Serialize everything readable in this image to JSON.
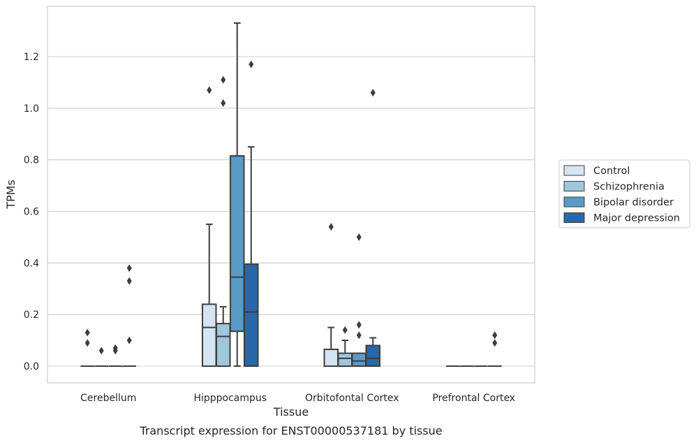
{
  "chart_data": {
    "type": "boxplot",
    "caption": "Transcript expression for ENST00000537181 by tissue",
    "xlabel": "Tissue",
    "ylabel": "TPMs",
    "ylim": [
      -0.065,
      1.395
    ],
    "yticks": [
      "0.0",
      "0.2",
      "0.4",
      "0.6",
      "0.8",
      "1.0",
      "1.2"
    ],
    "ytick_values": [
      0.0,
      0.2,
      0.4,
      0.6,
      0.8,
      1.0,
      1.2
    ],
    "grid": "horizontal",
    "legend_position": "right",
    "categories": [
      "Cerebellum",
      "Hipppocampus",
      "Orbitofontal Cortex",
      "Prefrontal Cortex"
    ],
    "series": [
      {
        "name": "Control",
        "color": "#d5e4f2",
        "boxes": [
          {
            "q1": 0.0,
            "median": 0.0,
            "q3": 0.0,
            "whisker_low": 0.0,
            "whisker_high": 0.0,
            "outliers": [
              0.13,
              0.09
            ]
          },
          {
            "q1": 0.0,
            "median": 0.15,
            "q3": 0.24,
            "whisker_low": 0.0,
            "whisker_high": 0.55,
            "outliers": [
              1.07
            ]
          },
          {
            "q1": 0.0,
            "median": 0.0,
            "q3": 0.065,
            "whisker_low": 0.0,
            "whisker_high": 0.15,
            "outliers": [
              0.54
            ]
          },
          {
            "q1": 0.0,
            "median": 0.0,
            "q3": 0.0,
            "whisker_low": 0.0,
            "whisker_high": 0.0,
            "outliers": []
          }
        ]
      },
      {
        "name": "Schizophrenia",
        "color": "#9ec6dc",
        "boxes": [
          {
            "q1": 0.0,
            "median": 0.0,
            "q3": 0.0,
            "whisker_low": 0.0,
            "whisker_high": 0.0,
            "outliers": [
              0.06
            ]
          },
          {
            "q1": 0.0,
            "median": 0.115,
            "q3": 0.165,
            "whisker_low": 0.0,
            "whisker_high": 0.23,
            "outliers": [
              1.11,
              1.02
            ]
          },
          {
            "q1": 0.0,
            "median": 0.03,
            "q3": 0.05,
            "whisker_low": 0.0,
            "whisker_high": 0.1,
            "outliers": [
              0.14
            ]
          },
          {
            "q1": 0.0,
            "median": 0.0,
            "q3": 0.0,
            "whisker_low": 0.0,
            "whisker_high": 0.0,
            "outliers": []
          }
        ]
      },
      {
        "name": "Bipolar disorder",
        "color": "#5a9ac7",
        "boxes": [
          {
            "q1": 0.0,
            "median": 0.0,
            "q3": 0.0,
            "whisker_low": 0.0,
            "whisker_high": 0.0,
            "outliers": [
              0.07,
              0.06
            ]
          },
          {
            "q1": 0.135,
            "median": 0.345,
            "q3": 0.815,
            "whisker_low": 0.0,
            "whisker_high": 1.33,
            "outliers": []
          },
          {
            "q1": 0.0,
            "median": 0.02,
            "q3": 0.05,
            "whisker_low": 0.0,
            "whisker_high": 0.05,
            "outliers": [
              0.5,
              0.16,
              0.12
            ]
          },
          {
            "q1": 0.0,
            "median": 0.0,
            "q3": 0.0,
            "whisker_low": 0.0,
            "whisker_high": 0.0,
            "outliers": []
          }
        ]
      },
      {
        "name": "Major depression",
        "color": "#2867a8",
        "boxes": [
          {
            "q1": 0.0,
            "median": 0.0,
            "q3": 0.0,
            "whisker_low": 0.0,
            "whisker_high": 0.0,
            "outliers": [
              0.38,
              0.33,
              0.1
            ]
          },
          {
            "q1": 0.0,
            "median": 0.21,
            "q3": 0.395,
            "whisker_low": 0.0,
            "whisker_high": 0.85,
            "outliers": [
              1.17
            ]
          },
          {
            "q1": 0.0,
            "median": 0.03,
            "q3": 0.08,
            "whisker_low": 0.0,
            "whisker_high": 0.11,
            "outliers": [
              1.06
            ]
          },
          {
            "q1": 0.0,
            "median": 0.0,
            "q3": 0.0,
            "whisker_low": 0.0,
            "whisker_high": 0.0,
            "outliers": [
              0.12,
              0.09
            ]
          }
        ]
      }
    ]
  }
}
